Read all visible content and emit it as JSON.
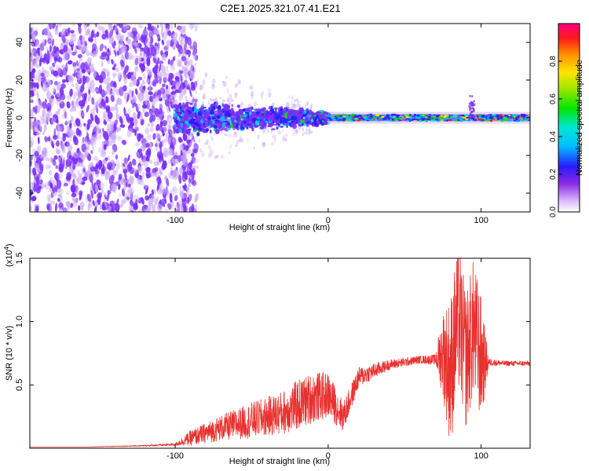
{
  "title": "C2E1.2025.321.07.41.E21",
  "colors": {
    "noise": "#7b2ff7",
    "noise_light": "#c9a8f7",
    "line": "#e8312f",
    "axis": "#000000"
  },
  "chart_data": [
    {
      "type": "heatmap",
      "title": "C2E1.2025.321.07.41.E21",
      "xlabel": "Height of straight line (km)",
      "ylabel": "Frequency (Hz)",
      "xlim": [
        -195,
        132
      ],
      "ylim": [
        -50,
        50
      ],
      "xticks": [
        -100,
        0,
        100
      ],
      "yticks": [
        -40,
        -20,
        0,
        20,
        40
      ],
      "xtick_labels": [
        "-100",
        "0",
        "100"
      ],
      "ytick_labels": [
        "-40",
        "-20",
        "0",
        "20",
        "40"
      ],
      "colorbar": {
        "label": "Normalized spectral amplitude",
        "range": [
          0,
          1
        ],
        "ticks": [
          0.0,
          0.2,
          0.4,
          0.6,
          0.8
        ],
        "tick_labels": [
          "0.0",
          "0.2",
          "0.4",
          "0.6",
          "0.8"
        ]
      },
      "description_regions": [
        {
          "x_range": [
            -195,
            -100
          ],
          "freq_range": [
            -50,
            50
          ],
          "amplitude": 0.15
        },
        {
          "x_range": [
            -100,
            0
          ],
          "freq_range": [
            -10,
            10
          ],
          "amplitude": 0.35
        },
        {
          "x_range": [
            0,
            132
          ],
          "freq_range": [
            -3,
            3
          ],
          "amplitude": 0.8
        }
      ]
    },
    {
      "type": "line",
      "xlabel": "Height of straight line (km)",
      "ylabel": "SNR (10 * v/v)",
      "multiplier_label": "(x10",
      "multiplier_exp": "4",
      "multiplier_close": ")",
      "xlim": [
        -195,
        132
      ],
      "ylim": [
        0,
        1.5
      ],
      "xticks": [
        -100,
        0,
        100
      ],
      "yticks": [
        0.5,
        1.0,
        1.5
      ],
      "xtick_labels": [
        "-100",
        "0",
        "100"
      ],
      "ytick_labels": [
        "0.5",
        "1.0",
        "1.5"
      ],
      "series": [
        {
          "name": "SNR",
          "x": [
            -195,
            -160,
            -120,
            -100,
            -90,
            -70,
            -50,
            -30,
            -20,
            -10,
            0,
            10,
            20,
            40,
            60,
            70,
            75,
            80,
            85,
            90,
            95,
            100,
            105,
            115,
            132
          ],
          "values": [
            0.01,
            0.01,
            0.02,
            0.03,
            0.08,
            0.16,
            0.22,
            0.28,
            0.34,
            0.4,
            0.42,
            0.25,
            0.56,
            0.66,
            0.7,
            0.7,
            0.75,
            0.6,
            1.05,
            0.7,
            0.95,
            0.7,
            0.68,
            0.67,
            0.67
          ],
          "noise": [
            0,
            0,
            0.005,
            0.01,
            0.06,
            0.1,
            0.14,
            0.17,
            0.2,
            0.2,
            0.18,
            0.12,
            0.08,
            0.04,
            0.03,
            0.04,
            0.35,
            0.6,
            0.6,
            0.55,
            0.55,
            0.5,
            0.03,
            0.02,
            0.02
          ]
        }
      ]
    }
  ]
}
